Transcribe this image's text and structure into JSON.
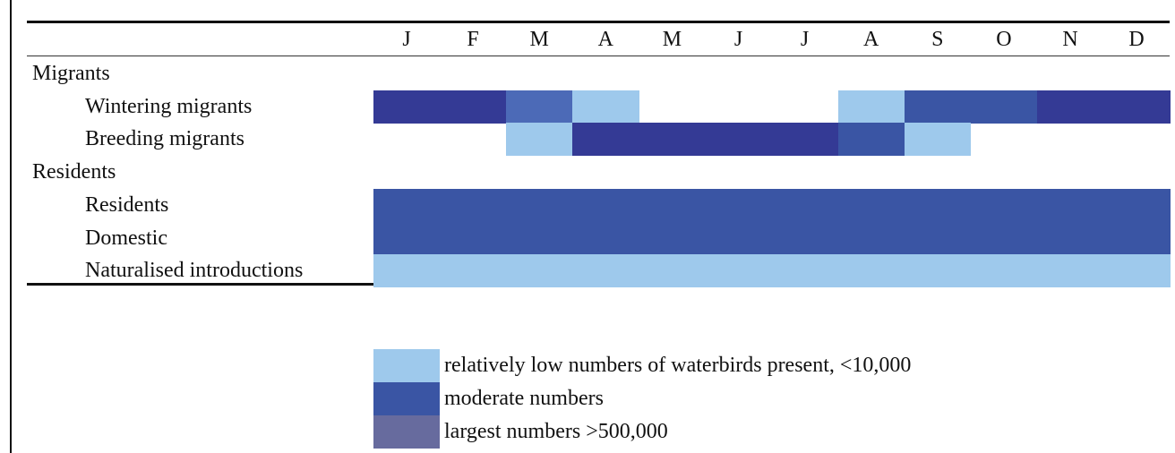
{
  "chart_data": {
    "type": "heatmap",
    "title": "",
    "months": [
      "J",
      "F",
      "M",
      "A",
      "M",
      "J",
      "J",
      "A",
      "S",
      "O",
      "N",
      "D"
    ],
    "colors": {
      "low": "#9ec9ec",
      "moderate": "#3a55a4",
      "largest": "#676b9e",
      "dark_navy": "#343a95",
      "mid_blue": "#4c6ab7"
    },
    "rows": [
      {
        "label": "Migrants",
        "group": true,
        "cells": []
      },
      {
        "label": "Wintering migrants",
        "group": false,
        "cells": [
          "dark_navy",
          "dark_navy",
          "mid_blue",
          "low",
          null,
          null,
          null,
          "low",
          "moderate",
          "moderate",
          "dark_navy",
          "dark_navy"
        ]
      },
      {
        "label": "Breeding migrants",
        "group": false,
        "cells": [
          null,
          null,
          "low",
          "dark_navy",
          "dark_navy",
          "dark_navy",
          "dark_navy",
          "moderate",
          "low",
          null,
          null,
          null
        ]
      },
      {
        "label": "Residents",
        "group": true,
        "cells": []
      },
      {
        "label": "Residents",
        "group": false,
        "cells": [
          "moderate",
          "moderate",
          "moderate",
          "moderate",
          "moderate",
          "moderate",
          "moderate",
          "moderate",
          "moderate",
          "moderate",
          "moderate",
          "moderate"
        ]
      },
      {
        "label": "Domestic",
        "group": false,
        "cells": [
          "moderate",
          "moderate",
          "moderate",
          "moderate",
          "moderate",
          "moderate",
          "moderate",
          "moderate",
          "moderate",
          "moderate",
          "moderate",
          "moderate"
        ]
      },
      {
        "label": "Naturalised introductions",
        "group": false,
        "cells": [
          "low",
          "low",
          "low",
          "low",
          "low",
          "low",
          "low",
          "low",
          "low",
          "low",
          "low",
          "low"
        ]
      }
    ],
    "legend": [
      {
        "key": "low",
        "text": "relatively low numbers of waterbirds present, <10,000"
      },
      {
        "key": "moderate",
        "text": "moderate numbers"
      },
      {
        "key": "largest",
        "text": "largest numbers >500,000"
      }
    ]
  }
}
